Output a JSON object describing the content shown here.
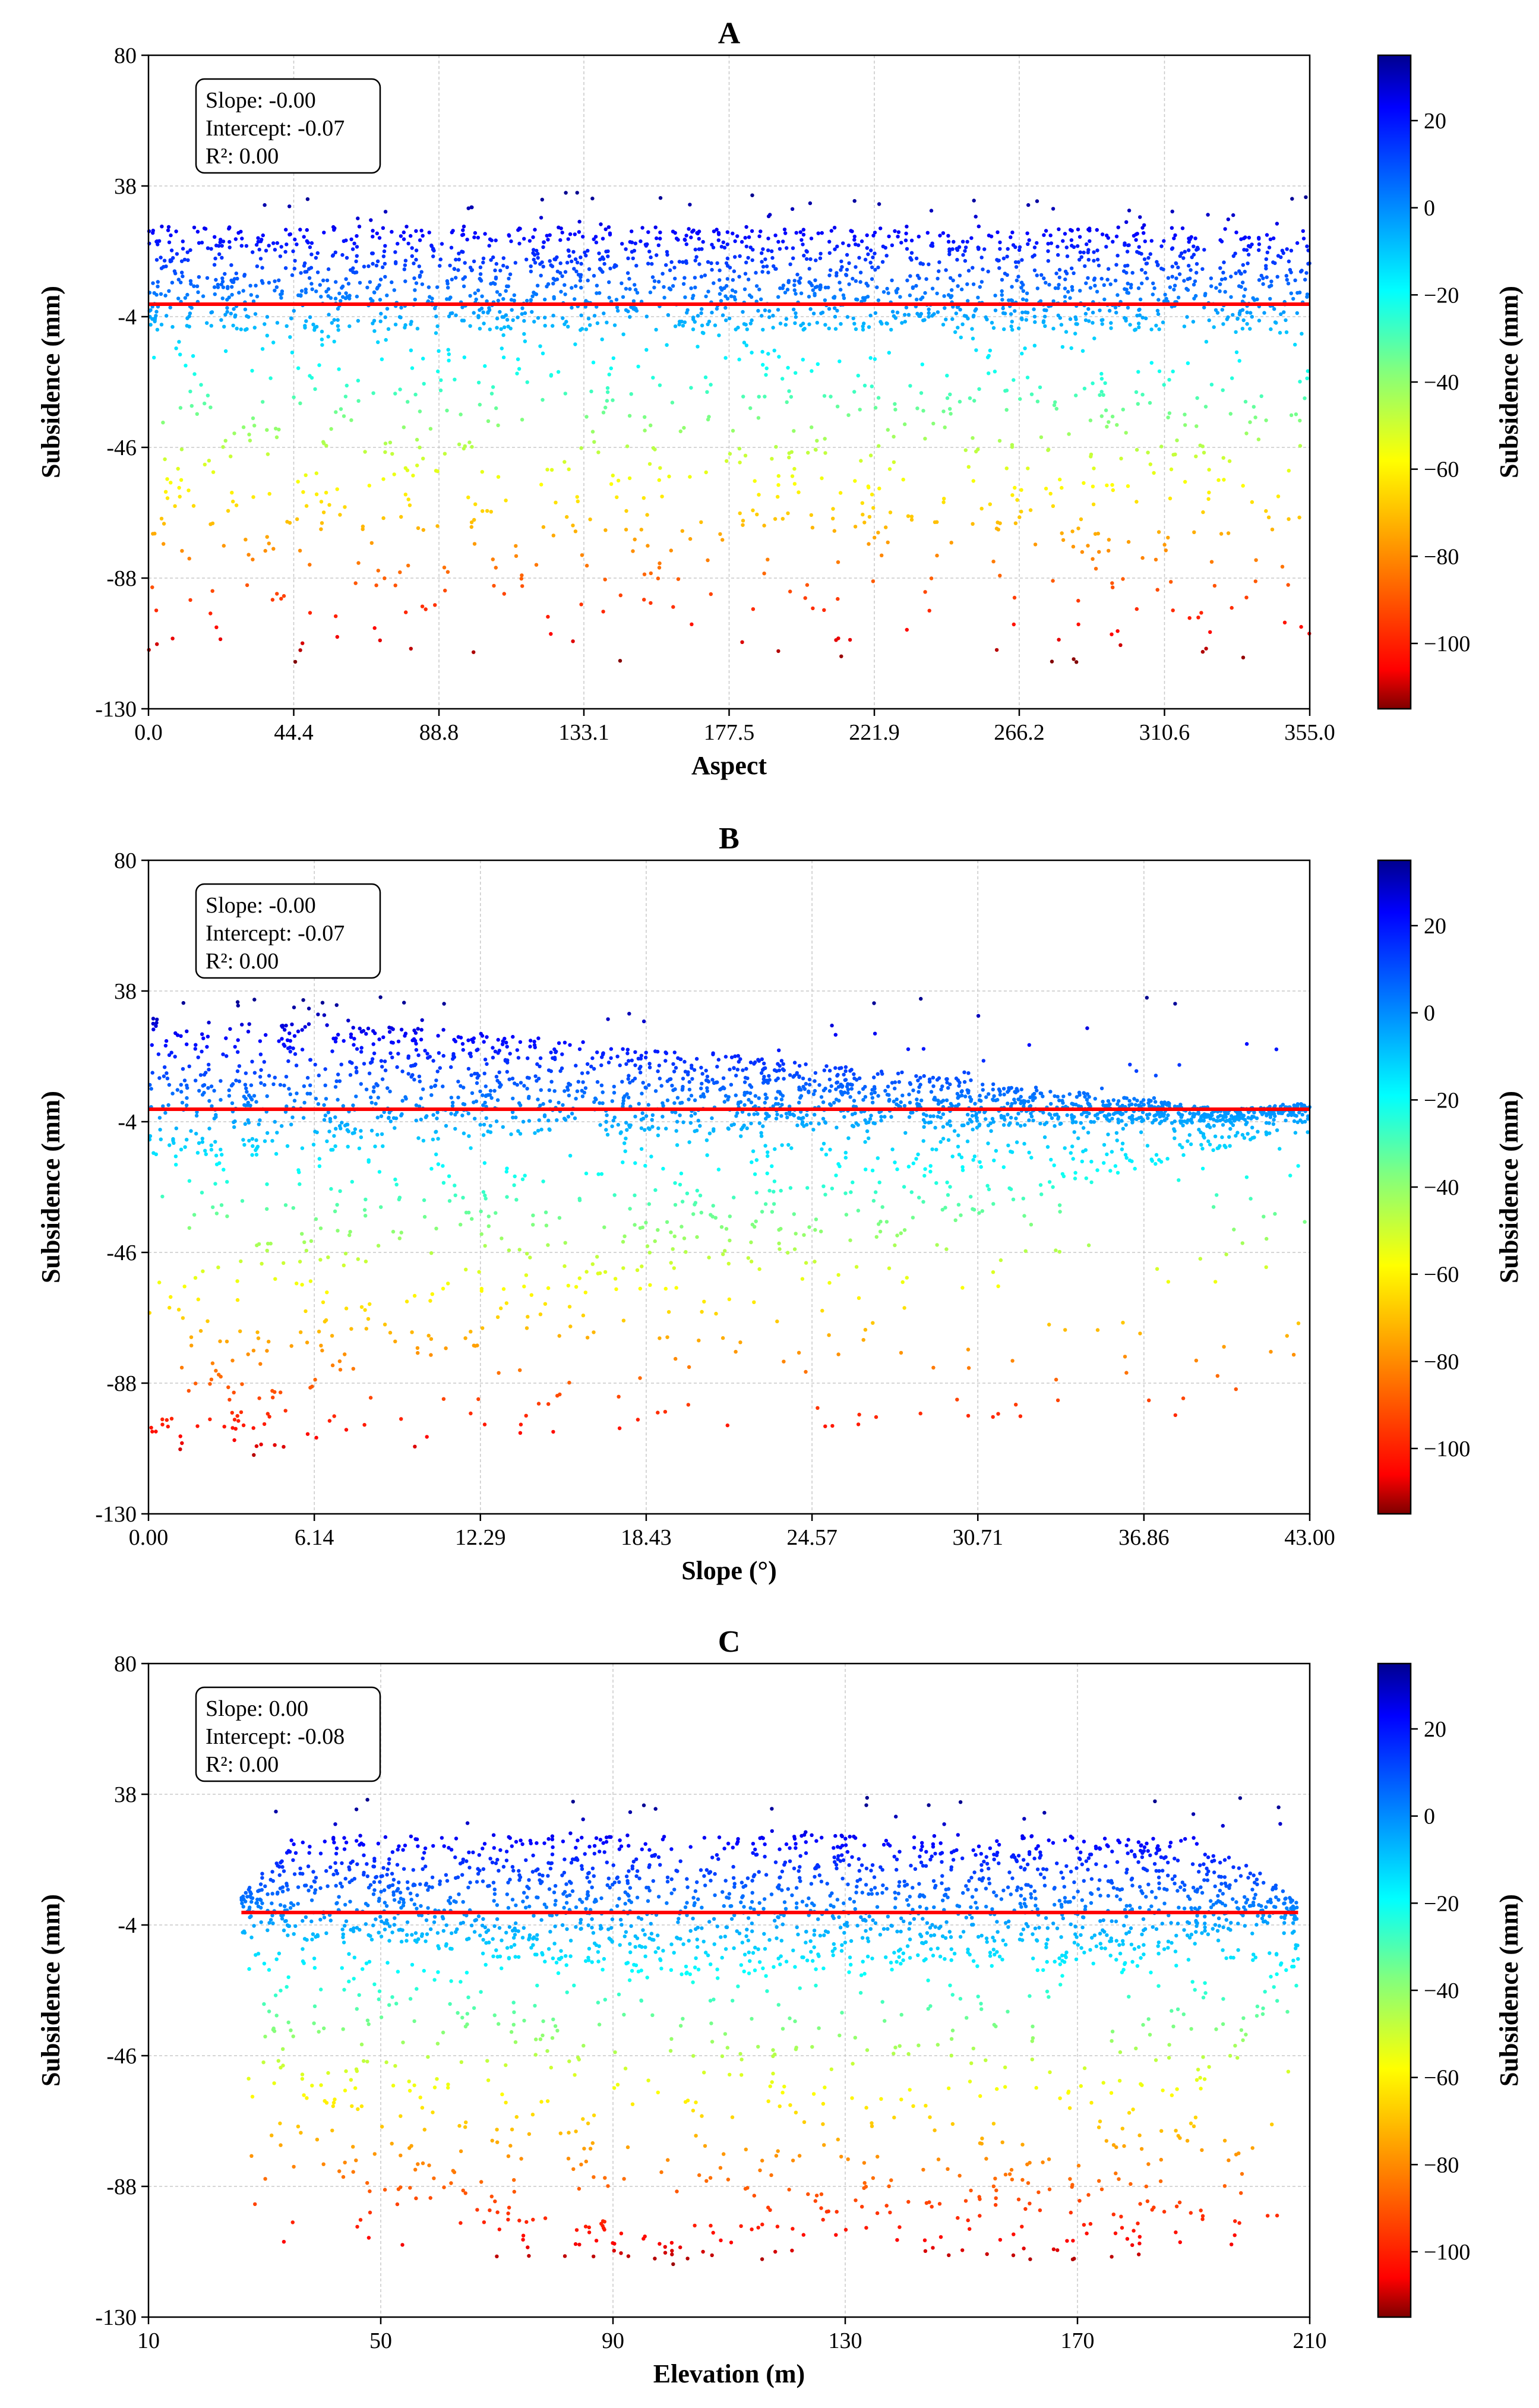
{
  "colormap": [
    "#7f0000",
    "#ff0000",
    "#ff8000",
    "#ffff00",
    "#80ff80",
    "#00ffff",
    "#0080ff",
    "#0000ff",
    "#00008f"
  ],
  "regression_color": "#ff0000",
  "chart_data": [
    {
      "type": "scatter",
      "title": "A",
      "xlabel": "Aspect",
      "ylabel": "Subsidence (mm)",
      "colorbar_label": "Subsidence (mm)",
      "xlim": [
        0,
        355
      ],
      "ylim": [
        -130,
        80
      ],
      "xticks": [
        "0.0",
        "44.4",
        "88.8",
        "133.1",
        "177.5",
        "221.9",
        "266.2",
        "310.6",
        "355.0"
      ],
      "yticks": [
        "80",
        "38",
        "-4",
        "-46",
        "-88",
        "-130"
      ],
      "colorbar_range": [
        -115,
        35
      ],
      "colorbar_ticks": [
        "20",
        "0",
        "−20",
        "−40",
        "−60",
        "−80",
        "−100"
      ],
      "stats": {
        "slope": "Slope: -0.00",
        "intercept": "Intercept: -0.07",
        "r2": "R²: 0.00"
      },
      "regression": {
        "slope": 0,
        "intercept": 0
      },
      "distribution": {
        "x_range": [
          0,
          355
        ],
        "upper_envelope": [
          [
            0,
            25
          ],
          [
            355,
            25
          ]
        ],
        "lower_envelope": [
          [
            0,
            -70
          ],
          [
            355,
            -70
          ]
        ],
        "max_value": 36,
        "min_value": -120
      }
    },
    {
      "type": "scatter",
      "title": "B",
      "xlabel": "Slope (°)",
      "ylabel": "Subsidence (mm)",
      "colorbar_label": "Subsidence (mm)",
      "xlim": [
        0,
        43
      ],
      "ylim": [
        -130,
        80
      ],
      "xticks": [
        "0.00",
        "6.14",
        "12.29",
        "18.43",
        "24.57",
        "30.71",
        "36.86",
        "43.00"
      ],
      "yticks": [
        "80",
        "38",
        "-4",
        "-46",
        "-88",
        "-130"
      ],
      "colorbar_range": [
        -115,
        35
      ],
      "colorbar_ticks": [
        "20",
        "0",
        "−20",
        "−40",
        "−60",
        "−80",
        "−100"
      ],
      "stats": {
        "slope": "Slope: -0.00",
        "intercept": "Intercept: -0.07",
        "r2": "R²: 0.00"
      },
      "regression": {
        "slope": 0,
        "intercept": 0
      },
      "distribution": {
        "x_range": [
          0,
          43
        ],
        "upper_envelope": [
          [
            0,
            30
          ],
          [
            10,
            26
          ],
          [
            20,
            19
          ],
          [
            30,
            10
          ],
          [
            40,
            0
          ],
          [
            43,
            2
          ]
        ],
        "lower_envelope": [
          [
            0,
            -100
          ],
          [
            6,
            -95
          ],
          [
            12,
            -70
          ],
          [
            20,
            -55
          ],
          [
            28,
            -40
          ],
          [
            34,
            -25
          ],
          [
            40,
            -12
          ],
          [
            43,
            -4
          ]
        ],
        "max_value": 36,
        "min_value": -113
      }
    },
    {
      "type": "scatter",
      "title": "C",
      "xlabel": "Elevation (m)",
      "ylabel": "Subsidence (mm)",
      "colorbar_label": "Subsidence (mm)",
      "xlim": [
        10,
        210
      ],
      "ylim": [
        -130,
        80
      ],
      "xticks": [
        "10",
        "50",
        "90",
        "130",
        "170",
        "210"
      ],
      "yticks": [
        "80",
        "38",
        "-4",
        "-46",
        "-88",
        "-130"
      ],
      "colorbar_range": [
        -115,
        35
      ],
      "colorbar_ticks": [
        "20",
        "0",
        "−20",
        "−40",
        "−60",
        "−80",
        "−100"
      ],
      "stats": {
        "slope": "Slope: 0.00",
        "intercept": "Intercept: -0.08",
        "r2": "R²: 0.00"
      },
      "regression": {
        "slope": 0,
        "intercept": 0
      },
      "x_data_range": [
        26,
        208
      ],
      "distribution": {
        "x_range": [
          26,
          208
        ],
        "upper_envelope": [
          [
            26,
            5
          ],
          [
            35,
            24
          ],
          [
            60,
            25
          ],
          [
            100,
            25
          ],
          [
            150,
            25
          ],
          [
            190,
            24
          ],
          [
            200,
            15
          ],
          [
            208,
            3
          ]
        ],
        "lower_envelope": [
          [
            26,
            -5
          ],
          [
            35,
            -70
          ],
          [
            50,
            -75
          ],
          [
            80,
            -95
          ],
          [
            100,
            -105
          ],
          [
            130,
            -95
          ],
          [
            160,
            -90
          ],
          [
            180,
            -95
          ],
          [
            200,
            -40
          ],
          [
            208,
            -15
          ]
        ],
        "max_value": 37,
        "min_value": -114
      }
    }
  ]
}
